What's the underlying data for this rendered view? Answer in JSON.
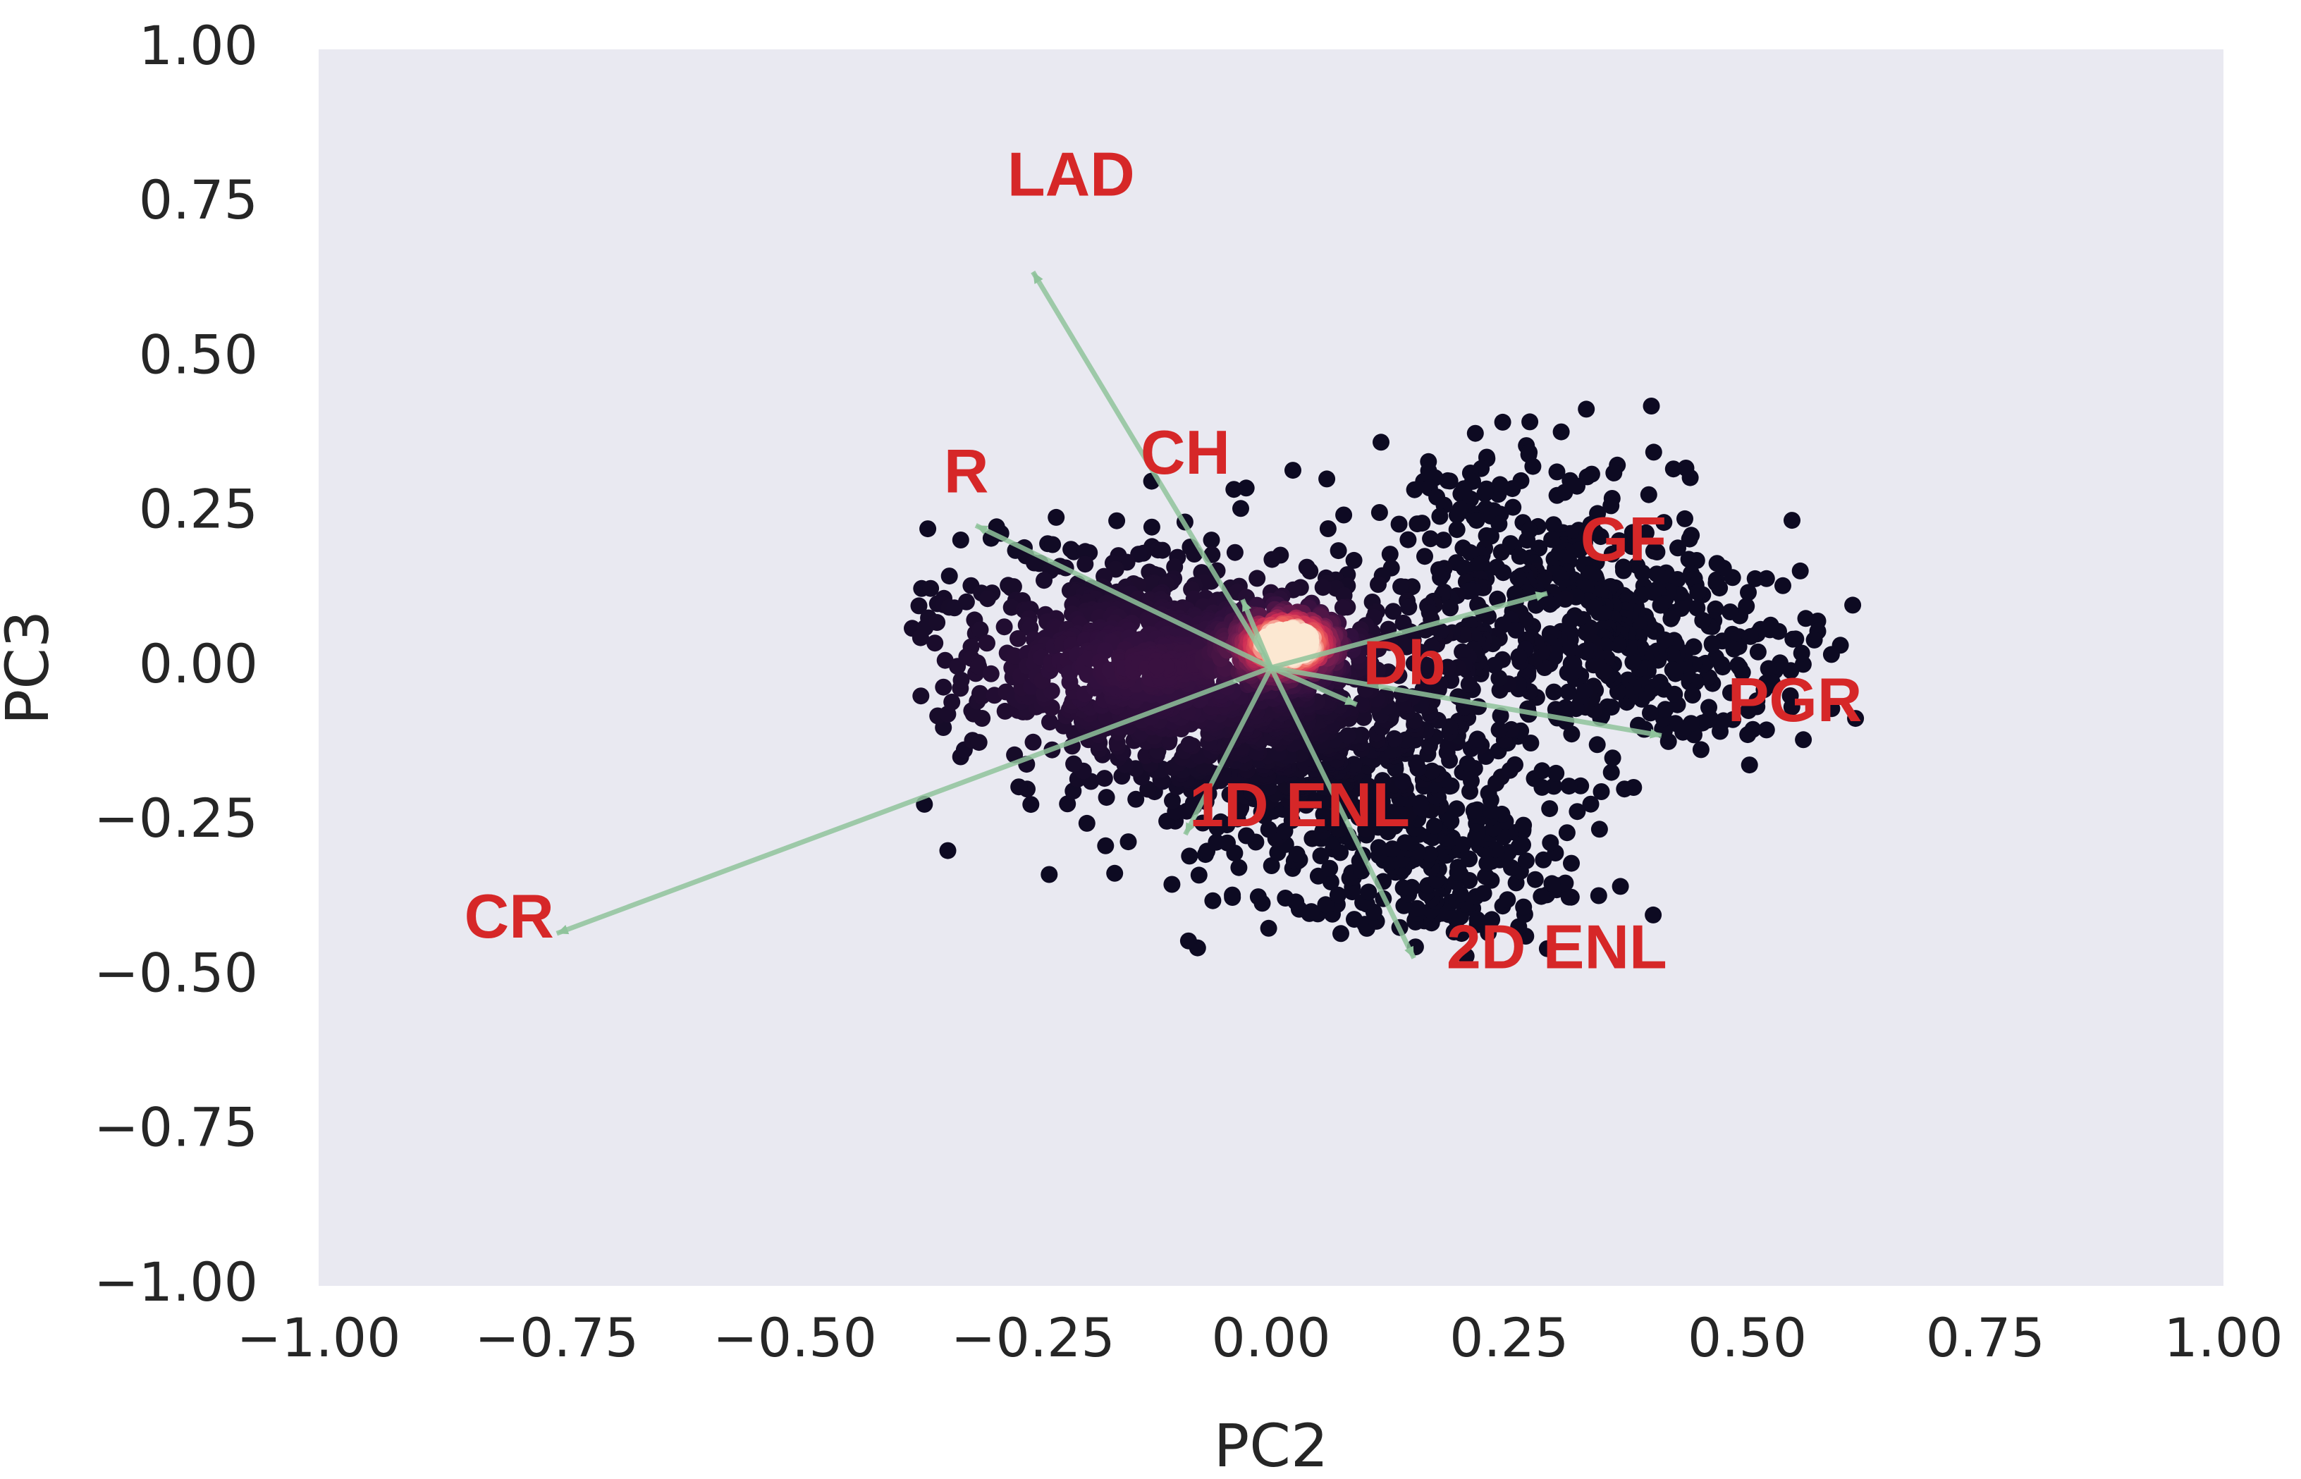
{
  "chart_data": {
    "type": "scatter",
    "subtype": "PCA biplot with density-colored points and loading vectors",
    "title": "",
    "xlabel": "PC2",
    "ylabel": "PC3",
    "xlim": [
      -1.0,
      1.0
    ],
    "ylim": [
      -1.0,
      1.0
    ],
    "xticks": [
      -1.0,
      -0.75,
      -0.5,
      -0.25,
      0.0,
      0.25,
      0.5,
      0.75,
      1.0
    ],
    "yticks": [
      -1.0,
      -0.75,
      -0.5,
      -0.25,
      0.0,
      0.25,
      0.5,
      0.75,
      1.0
    ],
    "xtick_labels": [
      "−1.00",
      "−0.75",
      "−0.50",
      "−0.25",
      "0.00",
      "0.25",
      "0.50",
      "0.75",
      "1.00"
    ],
    "ytick_labels": [
      "−1.00",
      "−0.75",
      "−0.50",
      "−0.25",
      "0.00",
      "0.25",
      "0.50",
      "0.75",
      "1.00"
    ],
    "grid": false,
    "background_color": "#e9e9f1",
    "colors": {
      "loading_arrow": "#8fc39b",
      "loading_label": "#d62728",
      "density_low": "#0d0a22",
      "density_mid": "#5b1f4e",
      "density_high": "#e8385a",
      "density_peak": "#fbe3cc"
    },
    "point_cloud": {
      "approx_x_range": [
        -0.38,
        0.62
      ],
      "approx_y_range": [
        -0.47,
        0.53
      ],
      "density_peak": [
        0.02,
        0.04
      ]
    },
    "loadings": [
      {
        "label": "LAD",
        "arrow_end": [
          -0.25,
          0.64
        ],
        "label_pos": [
          -0.21,
          0.79
        ]
      },
      {
        "label": "CH",
        "arrow_end": [
          -0.03,
          0.11
        ],
        "label_pos": [
          -0.09,
          0.34
        ]
      },
      {
        "label": "R",
        "arrow_end": [
          -0.31,
          0.23
        ],
        "label_pos": [
          -0.32,
          0.31
        ]
      },
      {
        "label": "GF",
        "arrow_end": [
          0.29,
          0.12
        ],
        "label_pos": [
          0.37,
          0.2
        ]
      },
      {
        "label": "Db",
        "arrow_end": [
          0.09,
          -0.06
        ],
        "label_pos": [
          0.14,
          0.0
        ]
      },
      {
        "label": "PGR",
        "arrow_end": [
          0.41,
          -0.11
        ],
        "label_pos": [
          0.55,
          -0.06
        ]
      },
      {
        "label": "1D ENL",
        "arrow_end": [
          -0.09,
          -0.27
        ],
        "label_pos": [
          0.03,
          -0.23
        ]
      },
      {
        "label": "2D ENL",
        "arrow_end": [
          0.15,
          -0.47
        ],
        "label_pos": [
          0.3,
          -0.46
        ]
      },
      {
        "label": "CR",
        "arrow_end": [
          -0.75,
          -0.43
        ],
        "label_pos": [
          -0.8,
          -0.41
        ]
      }
    ]
  }
}
